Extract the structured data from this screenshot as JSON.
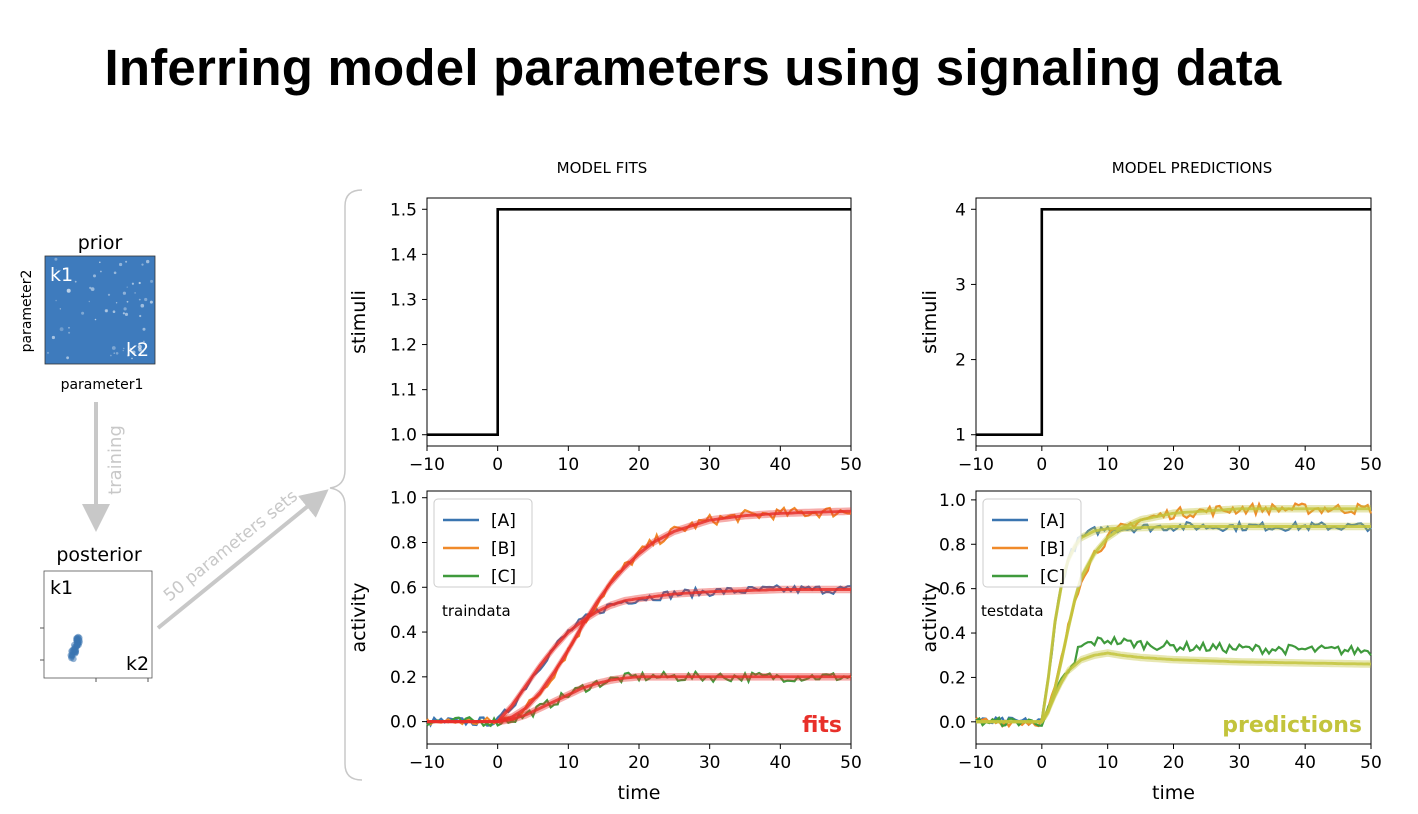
{
  "slide": {
    "title": "Inferring model parameters using signaling data"
  },
  "headers": {
    "fits": "MODEL FITS",
    "predictions": "MODEL PREDICTIONS"
  },
  "left": {
    "prior_title": "prior",
    "posterior_title": "posterior",
    "xlabel": "parameter1",
    "ylabel": "parameter2",
    "k1": "k1",
    "k2": "k2",
    "training": "training",
    "sets": "50 parameters sets"
  },
  "colors": {
    "A": "#3a75b0",
    "B": "#f08a2a",
    "C": "#3f9a3c",
    "fit": "#e8302a",
    "prediction": "#c3c43c",
    "arrow": "#c8c8c8",
    "prior": "#3e7bbd"
  },
  "chart_data": [
    {
      "id": "fits_stimuli",
      "type": "line",
      "ylabel": "stimuli",
      "xlim": [
        -10,
        50
      ],
      "ylim": [
        0.975,
        1.525
      ],
      "xticks": [
        -10,
        0,
        10,
        20,
        30,
        40,
        50
      ],
      "yticks": [
        1.0,
        1.1,
        1.2,
        1.3,
        1.4,
        1.5
      ],
      "ytick_labels": [
        "1.0",
        "1.1",
        "1.2",
        "1.3",
        "1.4",
        "1.5"
      ],
      "series": [
        {
          "x": [
            -10,
            0,
            0,
            50
          ],
          "y": [
            1.0,
            1.0,
            1.5,
            1.5
          ]
        }
      ]
    },
    {
      "id": "predictions_stimuli",
      "type": "line",
      "ylabel": "stimuli",
      "xlim": [
        -10,
        50
      ],
      "ylim": [
        0.85,
        4.15
      ],
      "xticks": [
        -10,
        0,
        10,
        20,
        30,
        40,
        50
      ],
      "yticks": [
        1,
        2,
        3,
        4
      ],
      "ytick_labels": [
        "1",
        "2",
        "3",
        "4"
      ],
      "series": [
        {
          "x": [
            -10,
            0,
            0,
            50
          ],
          "y": [
            1,
            1,
            4,
            4
          ]
        }
      ]
    },
    {
      "id": "fits_activity",
      "type": "line",
      "xlabel": "time",
      "ylabel": "activity",
      "xlim": [
        -10,
        50
      ],
      "ylim": [
        -0.1,
        1.03
      ],
      "xticks": [
        -10,
        0,
        10,
        20,
        30,
        40,
        50
      ],
      "yticks": [
        0.0,
        0.2,
        0.4,
        0.6,
        0.8,
        1.0
      ],
      "ytick_labels": [
        "0.0",
        "0.2",
        "0.4",
        "0.6",
        "0.8",
        "1.0"
      ],
      "annotation": "traindata",
      "overlay_label": "fits",
      "legend": [
        "[A]",
        "[B]",
        "[C]"
      ],
      "series": [
        {
          "x": [
            -10,
            0,
            2,
            4,
            6,
            8,
            10,
            12,
            14,
            16,
            18,
            20,
            25,
            30,
            35,
            40,
            45,
            50
          ],
          "y": [
            0,
            0,
            0.07,
            0.16,
            0.25,
            0.33,
            0.4,
            0.45,
            0.49,
            0.52,
            0.54,
            0.55,
            0.57,
            0.58,
            0.585,
            0.59,
            0.59,
            0.59
          ]
        },
        {
          "x": [
            -10,
            0,
            2,
            4,
            6,
            8,
            10,
            12,
            14,
            16,
            18,
            20,
            22,
            25,
            28,
            30,
            35,
            40,
            45,
            50
          ],
          "y": [
            0,
            0,
            0.02,
            0.06,
            0.13,
            0.22,
            0.32,
            0.43,
            0.53,
            0.62,
            0.69,
            0.75,
            0.8,
            0.85,
            0.88,
            0.9,
            0.92,
            0.93,
            0.935,
            0.94
          ]
        },
        {
          "x": [
            -10,
            0,
            2,
            4,
            6,
            8,
            10,
            12,
            14,
            16,
            18,
            20,
            25,
            30,
            35,
            40,
            45,
            50
          ],
          "y": [
            0,
            0,
            0.01,
            0.03,
            0.06,
            0.09,
            0.12,
            0.15,
            0.17,
            0.185,
            0.195,
            0.2,
            0.2,
            0.2,
            0.2,
            0.2,
            0.2,
            0.2
          ]
        }
      ]
    },
    {
      "id": "predictions_activity",
      "type": "line",
      "xlabel": "time",
      "ylabel": "activity",
      "xlim": [
        -10,
        50
      ],
      "ylim": [
        -0.1,
        1.04
      ],
      "xticks": [
        -10,
        0,
        10,
        20,
        30,
        40,
        50
      ],
      "yticks": [
        0.0,
        0.2,
        0.4,
        0.6,
        0.8,
        1.0
      ],
      "ytick_labels": [
        "0.0",
        "0.2",
        "0.4",
        "0.6",
        "0.8",
        "1.0"
      ],
      "annotation": "testdata",
      "overlay_label": "predictions",
      "legend": [
        "[A]",
        "[B]",
        "[C]"
      ],
      "series": [
        {
          "x": [
            -10,
            0,
            1,
            2,
            3,
            4,
            5,
            6,
            8,
            10,
            15,
            20,
            30,
            40,
            50
          ],
          "y": [
            0,
            0,
            0.2,
            0.45,
            0.62,
            0.73,
            0.79,
            0.83,
            0.86,
            0.87,
            0.875,
            0.88,
            0.88,
            0.88,
            0.88
          ]
        },
        {
          "x": [
            -10,
            0,
            1,
            2,
            3,
            4,
            5,
            6,
            8,
            10,
            12,
            15,
            20,
            25,
            30,
            40,
            50
          ],
          "y": [
            0,
            0,
            0.05,
            0.15,
            0.28,
            0.42,
            0.55,
            0.65,
            0.76,
            0.83,
            0.87,
            0.91,
            0.94,
            0.95,
            0.96,
            0.96,
            0.96
          ]
        },
        {
          "x": [
            -10,
            0,
            1,
            2,
            3,
            4,
            6,
            8,
            10,
            12,
            15,
            20,
            30,
            40,
            50
          ],
          "y": [
            0,
            0,
            0.05,
            0.12,
            0.18,
            0.23,
            0.28,
            0.3,
            0.31,
            0.3,
            0.29,
            0.28,
            0.27,
            0.265,
            0.26
          ]
        }
      ]
    }
  ]
}
